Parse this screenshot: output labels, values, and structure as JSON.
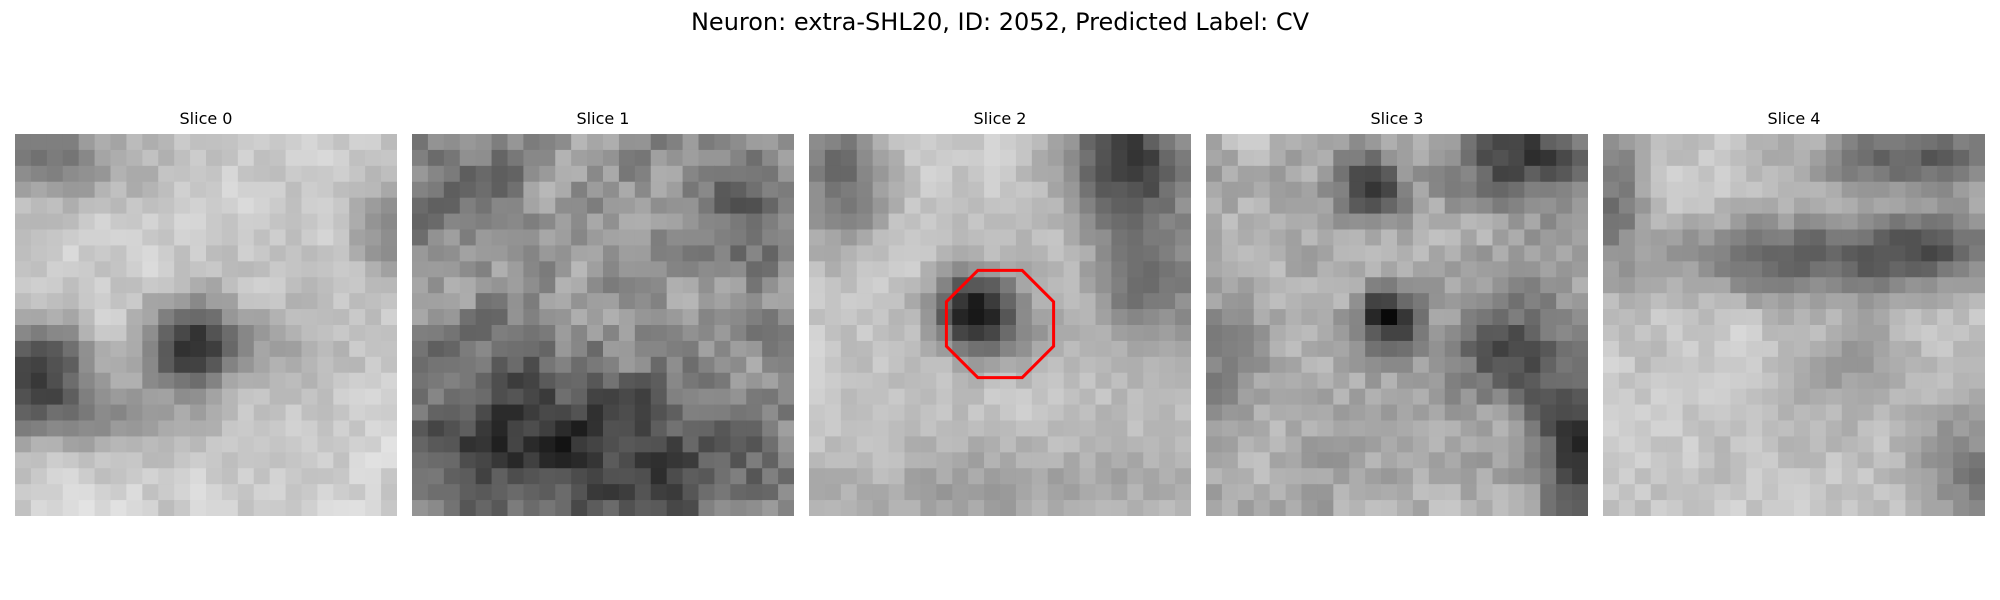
{
  "figure": {
    "title": "Neuron: extra-SHL20, ID: 2052, Predicted Label: CV",
    "colormap": "grayscale",
    "marker_color": "#ff0000",
    "marker_on_slice": 2
  },
  "slices": [
    {
      "label": "Slice 0",
      "description": "light granular field with a dark round blob below center and a dark patch at left edge"
    },
    {
      "label": "Slice 1",
      "description": "noisy mid-gray texture, darker lower half"
    },
    {
      "label": "Slice 2",
      "description": "light field with a dark spot near center enclosed by a red octagon"
    },
    {
      "label": "Slice 3",
      "description": "mottled gray texture with a dark spot near center"
    },
    {
      "label": "Slice 4",
      "description": "light granular field with a dark horizontal band in upper middle"
    }
  ]
}
